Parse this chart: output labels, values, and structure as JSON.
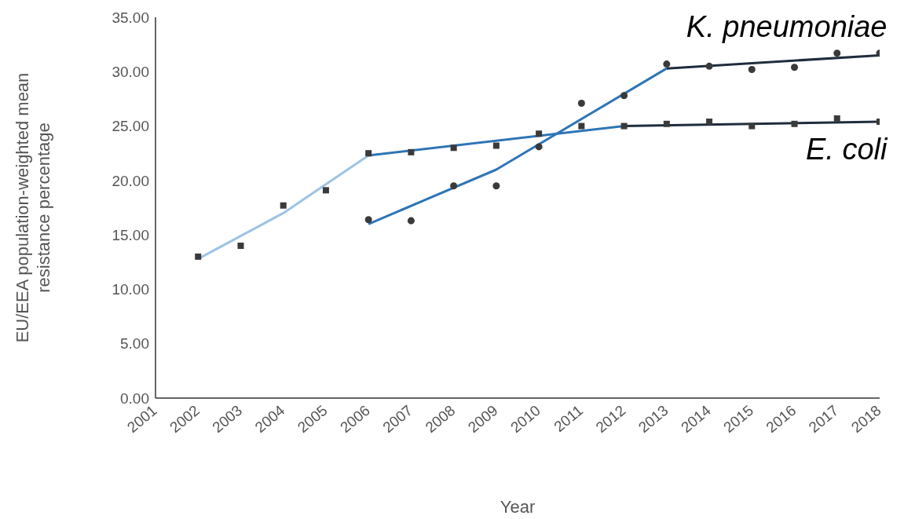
{
  "chart_data": {
    "type": "scatter",
    "xlabel": "Year",
    "ylabel": "EU/EEA population-weighted mean resistance percentage",
    "xlim": [
      2001,
      2018
    ],
    "xticks": [
      2001,
      2002,
      2003,
      2004,
      2005,
      2006,
      2007,
      2008,
      2009,
      2010,
      2011,
      2012,
      2013,
      2014,
      2015,
      2016,
      2017,
      2018
    ],
    "ylim": [
      0,
      35
    ],
    "yticks": [
      {
        "value": 0,
        "label": "0.00"
      },
      {
        "value": 5,
        "label": "5.00"
      },
      {
        "value": 10,
        "label": "10.00"
      },
      {
        "value": 15,
        "label": "15.00"
      },
      {
        "value": 20,
        "label": "20.00"
      },
      {
        "value": 25,
        "label": "25.00"
      },
      {
        "value": 30,
        "label": "30.00"
      },
      {
        "value": 35,
        "label": "35.00"
      }
    ],
    "grid": false,
    "legend": false,
    "series": [
      {
        "name": "K. pneumoniae",
        "marker": "circle",
        "color": "#3a3a3a",
        "x": [
          2006,
          2007,
          2008,
          2009,
          2010,
          2011,
          2012,
          2013,
          2014,
          2015,
          2016,
          2017,
          2018
        ],
        "values": [
          16.4,
          16.3,
          19.5,
          19.5,
          23.1,
          27.1,
          27.8,
          30.7,
          30.5,
          30.2,
          30.4,
          31.7,
          31.7
        ]
      },
      {
        "name": "E. coli",
        "marker": "square",
        "color": "#3a3a3a",
        "x": [
          2002,
          2003,
          2004,
          2005,
          2006,
          2007,
          2008,
          2009,
          2010,
          2011,
          2012,
          2013,
          2014,
          2015,
          2016,
          2017,
          2018
        ],
        "values": [
          13.0,
          14.0,
          17.7,
          19.1,
          22.5,
          22.6,
          23.0,
          23.2,
          24.3,
          25.0,
          25.0,
          25.2,
          25.4,
          25.0,
          25.2,
          25.7,
          25.4
        ]
      },
      {
        "type": "line",
        "color": "#9dc3e6",
        "x": [
          2002,
          2004,
          2006
        ],
        "values": [
          12.8,
          17.0,
          22.3
        ]
      },
      {
        "type": "line",
        "color": "#2e75b6",
        "x": [
          2006,
          2012
        ],
        "values": [
          22.3,
          25.0
        ]
      },
      {
        "type": "line",
        "color": "#1f2d3d",
        "x": [
          2012,
          2018
        ],
        "values": [
          25.0,
          25.4
        ]
      },
      {
        "type": "line",
        "color": "#2e75b6",
        "x": [
          2006,
          2009,
          2013
        ],
        "values": [
          16.0,
          21.0,
          30.3
        ]
      },
      {
        "type": "line",
        "color": "#1f2d3d",
        "x": [
          2013,
          2018
        ],
        "values": [
          30.3,
          31.5
        ]
      }
    ]
  }
}
